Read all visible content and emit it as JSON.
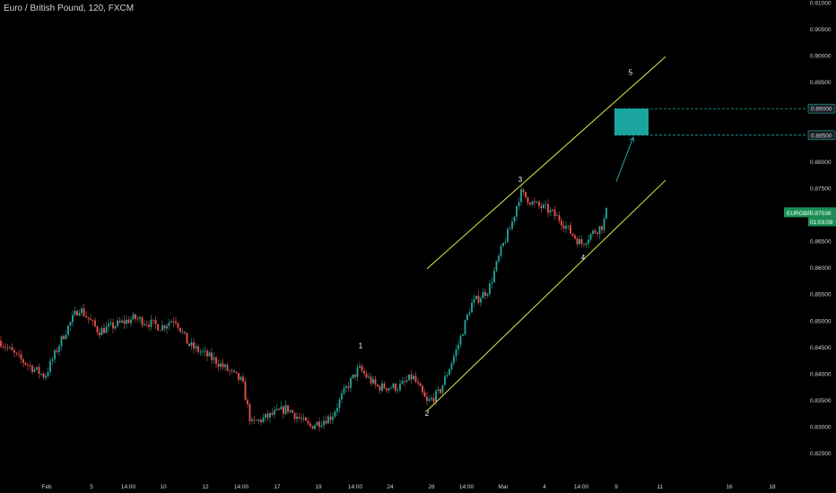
{
  "header": {
    "title": "Euro / British Pound, 120, FXCM"
  },
  "colors": {
    "background": "#000000",
    "up": "#26a69a",
    "down": "#ef5350",
    "channel": "#e8e84a",
    "target": "#1aa5a0",
    "label_bg": "#1c2126",
    "last_price_bg": "#1a8f55"
  },
  "chart_data": {
    "type": "candlestick",
    "symbol": "EURGBP",
    "interval": "120",
    "source": "FXCM",
    "ylim": [
      0.8175,
      0.9105
    ],
    "y_ticks": [
      "0.82000",
      "0.82500",
      "0.83000",
      "0.83500",
      "0.84000",
      "0.84500",
      "0.85000",
      "0.85500",
      "0.86000",
      "0.86500",
      "0.87000",
      "0.87500",
      "0.88000",
      "0.88500",
      "0.89000",
      "0.89500",
      "0.90000",
      "0.90500",
      "0.91000"
    ],
    "x_tick_labels": [
      "Feb",
      "5",
      "14:00",
      "10",
      "12",
      "14:00",
      "17",
      "19",
      "14:00",
      "24",
      "26",
      "14:00",
      "Mar",
      "4",
      "14:00",
      "9",
      "11",
      "16",
      "18"
    ],
    "price_path": [
      {
        "t": 0,
        "p": 0.8462
      },
      {
        "t": 20,
        "p": 0.843
      },
      {
        "t": 50,
        "p": 0.8395
      },
      {
        "t": 70,
        "p": 0.847
      },
      {
        "t": 88,
        "p": 0.8525
      },
      {
        "t": 110,
        "p": 0.848
      },
      {
        "t": 150,
        "p": 0.8505
      },
      {
        "t": 180,
        "p": 0.8488
      },
      {
        "t": 195,
        "p": 0.8505
      },
      {
        "t": 210,
        "p": 0.8455
      },
      {
        "t": 240,
        "p": 0.8425
      },
      {
        "t": 270,
        "p": 0.8385
      },
      {
        "t": 280,
        "p": 0.8305
      },
      {
        "t": 300,
        "p": 0.832
      },
      {
        "t": 320,
        "p": 0.8335
      },
      {
        "t": 345,
        "p": 0.83
      },
      {
        "t": 370,
        "p": 0.832
      },
      {
        "t": 385,
        "p": 0.837
      },
      {
        "t": 400,
        "p": 0.841
      },
      {
        "t": 420,
        "p": 0.8375
      },
      {
        "t": 445,
        "p": 0.8375
      },
      {
        "t": 460,
        "p": 0.8395
      },
      {
        "t": 476,
        "p": 0.8345
      },
      {
        "t": 490,
        "p": 0.8365
      },
      {
        "t": 510,
        "p": 0.845
      },
      {
        "t": 525,
        "p": 0.853
      },
      {
        "t": 545,
        "p": 0.856
      },
      {
        "t": 560,
        "p": 0.864
      },
      {
        "t": 570,
        "p": 0.868
      },
      {
        "t": 580,
        "p": 0.8742
      },
      {
        "t": 595,
        "p": 0.872
      },
      {
        "t": 610,
        "p": 0.871
      },
      {
        "t": 625,
        "p": 0.869
      },
      {
        "t": 637,
        "p": 0.8665
      },
      {
        "t": 648,
        "p": 0.8645
      },
      {
        "t": 660,
        "p": 0.8665
      },
      {
        "t": 672,
        "p": 0.868
      },
      {
        "t": 676,
        "p": 0.8705
      }
    ],
    "last_price": {
      "symbol": "EURGBP",
      "value": "0.87036",
      "countdown": "01:03:09"
    },
    "target_zone": {
      "from": 0.885,
      "to": 0.89,
      "labels": [
        "0.88500",
        "0.89000"
      ]
    },
    "channel": {
      "upper": [
        {
          "t": 476,
          "p": 0.8598
        },
        {
          "t": 742,
          "p": 0.8998
        }
      ],
      "lower": [
        {
          "t": 476,
          "p": 0.833
        },
        {
          "t": 742,
          "p": 0.8765
        }
      ]
    },
    "projection_arrow": [
      {
        "t": 687,
        "p": 0.8762
      },
      {
        "t": 706,
        "p": 0.8846
      }
    ],
    "wave_labels": [
      {
        "label": "1",
        "t": 402,
        "p": 0.8448
      },
      {
        "label": "2",
        "t": 476,
        "p": 0.832
      },
      {
        "label": "3",
        "t": 580,
        "p": 0.8762
      },
      {
        "label": "4",
        "t": 650,
        "p": 0.8615
      },
      {
        "label": "5",
        "t": 703,
        "p": 0.8964
      }
    ]
  }
}
